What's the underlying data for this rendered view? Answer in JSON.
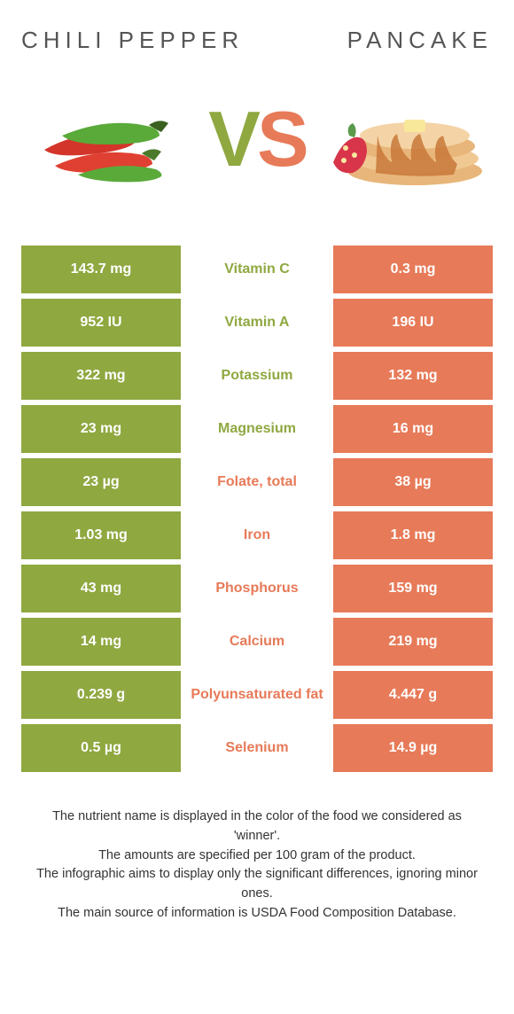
{
  "colors": {
    "left": "#8fa840",
    "right": "#e77a58",
    "title": "#555555"
  },
  "header": {
    "left_title": "CHILI PEPPER",
    "right_title": "PANCAKE",
    "vs_v": "V",
    "vs_s": "S"
  },
  "rows": [
    {
      "left": "143.7 mg",
      "label": "Vitamin C",
      "winner": "left",
      "right": "0.3 mg"
    },
    {
      "left": "952 IU",
      "label": "Vitamin A",
      "winner": "left",
      "right": "196 IU"
    },
    {
      "left": "322 mg",
      "label": "Potassium",
      "winner": "left",
      "right": "132 mg"
    },
    {
      "left": "23 mg",
      "label": "Magnesium",
      "winner": "left",
      "right": "16 mg"
    },
    {
      "left": "23 µg",
      "label": "Folate, total",
      "winner": "right",
      "right": "38 µg"
    },
    {
      "left": "1.03 mg",
      "label": "Iron",
      "winner": "right",
      "right": "1.8 mg"
    },
    {
      "left": "43 mg",
      "label": "Phosphorus",
      "winner": "right",
      "right": "159 mg"
    },
    {
      "left": "14 mg",
      "label": "Calcium",
      "winner": "right",
      "right": "219 mg"
    },
    {
      "left": "0.239 g",
      "label": "Polyunsaturated fat",
      "winner": "right",
      "right": "4.447 g"
    },
    {
      "left": "0.5 µg",
      "label": "Selenium",
      "winner": "right",
      "right": "14.9 µg"
    }
  ],
  "notes": [
    "The nutrient name is displayed in the color of the food we considered as 'winner'.",
    "The amounts are specified per 100 gram of the product.",
    "The infographic aims to display only the significant differences, ignoring minor ones.",
    "The main source of information is USDA Food Composition Database."
  ]
}
